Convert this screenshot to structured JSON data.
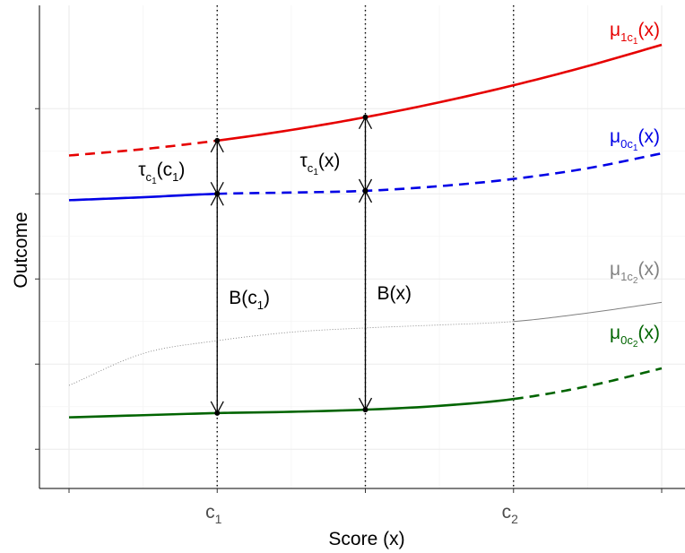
{
  "chart_data": {
    "type": "line",
    "xlabel": "Score (x)",
    "ylabel": "Outcome",
    "xlim": [
      0,
      4
    ],
    "ylim": [
      0,
      10
    ],
    "x_ticks": [
      {
        "x": 1,
        "label": "c",
        "sub": "1"
      },
      {
        "x": 3,
        "label": "c",
        "sub": "2"
      }
    ],
    "x_minor_ticks": [
      0,
      2,
      4
    ],
    "y_ticks": [
      0.5,
      2.5,
      4.5,
      6.5,
      8.5
    ],
    "cutoffs": [
      1,
      2,
      3
    ],
    "grid": true,
    "series": [
      {
        "key": "mu1c1",
        "name": {
          "base": "μ",
          "sub": "1c",
          "subsub": "1",
          "tail": "(x)"
        },
        "color": "#e60000",
        "observed_range": [
          1,
          4
        ],
        "unobserved_style": "dashed",
        "x": [
          0,
          0.5,
          1,
          1.5,
          2,
          2.5,
          3,
          3.5,
          4
        ],
        "y": [
          7.4,
          7.55,
          7.75,
          8.0,
          8.3,
          8.65,
          9.05,
          9.5,
          10.0
        ]
      },
      {
        "key": "mu0c1",
        "name": {
          "base": "μ",
          "sub": "0c",
          "subsub": "1",
          "tail": "(x)"
        },
        "color": "#0000e6",
        "observed_range": [
          0,
          1
        ],
        "unobserved_style": "dashed",
        "x": [
          0,
          0.5,
          1,
          1.5,
          2,
          2.5,
          3,
          3.5,
          4
        ],
        "y": [
          6.35,
          6.42,
          6.5,
          6.53,
          6.57,
          6.68,
          6.85,
          7.1,
          7.45
        ]
      },
      {
        "key": "mu1c2",
        "name": {
          "base": "μ",
          "sub": "1c",
          "subsub": "2",
          "tail": "(x)"
        },
        "color": "#808080",
        "observed_range": [
          3,
          4
        ],
        "unobserved_style": "dotted",
        "x": [
          0,
          0.5,
          1,
          1.5,
          2,
          2.5,
          3,
          3.5,
          4
        ],
        "y": [
          2.0,
          2.75,
          3.05,
          3.25,
          3.35,
          3.42,
          3.5,
          3.7,
          3.95
        ]
      },
      {
        "key": "mu0c2",
        "name": {
          "base": "μ",
          "sub": "0c",
          "subsub": "2",
          "tail": "(x)"
        },
        "color": "#006400",
        "observed_range": [
          0,
          3
        ],
        "unobserved_style": "dashed",
        "x": [
          0,
          0.5,
          1,
          1.5,
          2,
          2.5,
          3,
          3.5,
          4
        ],
        "y": [
          1.25,
          1.3,
          1.35,
          1.38,
          1.43,
          1.52,
          1.68,
          1.98,
          2.4
        ]
      }
    ],
    "annotations": [
      {
        "type": "arrow",
        "x": 1,
        "from": "mu1c1",
        "to": "mu0c1",
        "label": {
          "base": "τ",
          "sub": "c",
          "subsub": "1",
          "tail": "(c",
          "tailsub": "1",
          "end": ")"
        }
      },
      {
        "type": "arrow",
        "x": 2,
        "from": "mu1c1",
        "to": "mu0c1",
        "label": {
          "base": "τ",
          "sub": "c",
          "subsub": "1",
          "tail": "(x)"
        }
      },
      {
        "type": "arrow",
        "x": 1,
        "from": "mu0c1",
        "to": "mu0c2",
        "label": {
          "base": "B(c",
          "sub": "1",
          "tail": ")"
        }
      },
      {
        "type": "arrow",
        "x": 2,
        "from": "mu0c1",
        "to": "mu0c2",
        "label": {
          "base": "B(x)"
        }
      }
    ]
  }
}
